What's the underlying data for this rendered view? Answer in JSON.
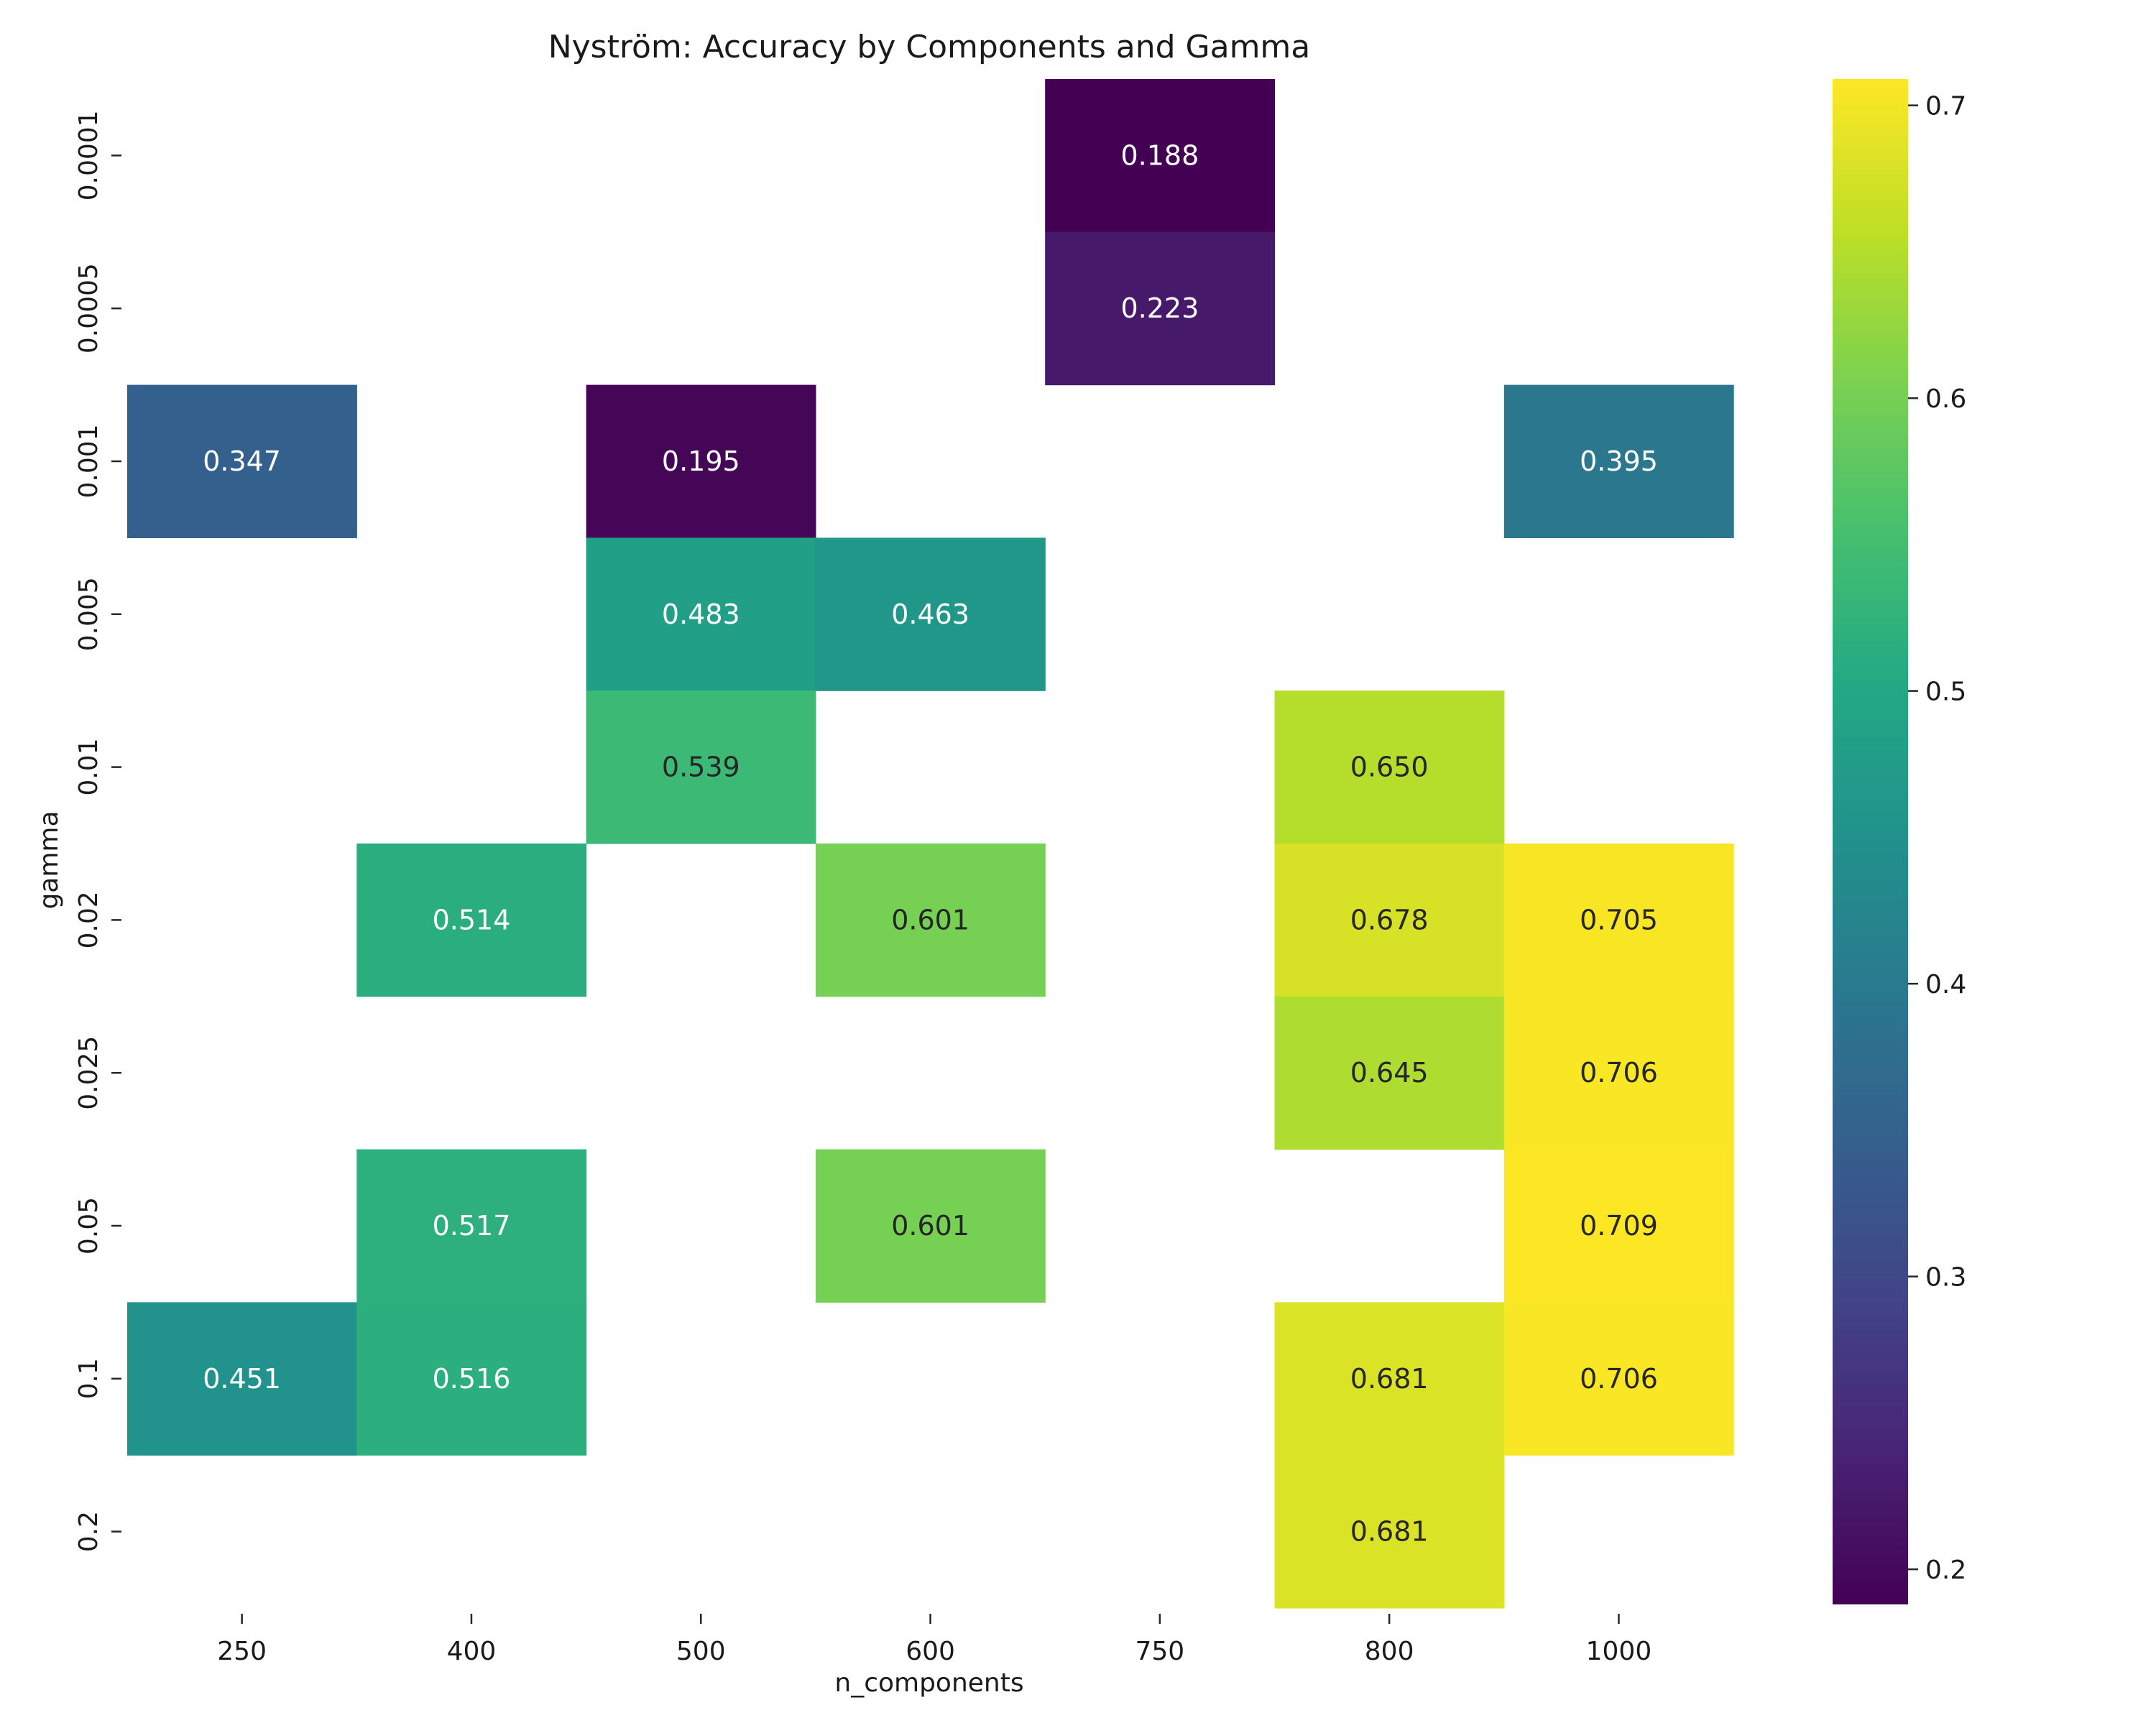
{
  "chart_data": {
    "type": "heatmap",
    "title": "Nyström: Accuracy by Components and Gamma",
    "xlabel": "n_components",
    "ylabel": "gamma",
    "x_categories": [
      "250",
      "400",
      "500",
      "600",
      "750",
      "800",
      "1000"
    ],
    "y_categories": [
      "0.0001",
      "0.0005",
      "0.001",
      "0.005",
      "0.01",
      "0.02",
      "0.025",
      "0.05",
      "0.1",
      "0.2"
    ],
    "values": [
      [
        null,
        null,
        null,
        null,
        0.188,
        null,
        null
      ],
      [
        null,
        null,
        null,
        null,
        0.223,
        null,
        null
      ],
      [
        0.347,
        null,
        0.195,
        null,
        null,
        null,
        0.395
      ],
      [
        null,
        null,
        0.483,
        0.463,
        null,
        null,
        null
      ],
      [
        null,
        null,
        0.539,
        null,
        null,
        0.65,
        null
      ],
      [
        null,
        0.514,
        null,
        0.601,
        null,
        0.678,
        0.705
      ],
      [
        null,
        null,
        null,
        null,
        null,
        0.645,
        0.706
      ],
      [
        null,
        0.517,
        null,
        0.601,
        null,
        null,
        0.709
      ],
      [
        0.451,
        0.516,
        null,
        null,
        null,
        0.681,
        0.706
      ],
      [
        null,
        null,
        null,
        null,
        null,
        0.681,
        null
      ]
    ],
    "value_format": "0.000",
    "colormap": "viridis",
    "vmin": 0.188,
    "vmax": 0.709,
    "colorbar_ticks": [
      "0.2",
      "0.3",
      "0.4",
      "0.5",
      "0.6",
      "0.7"
    ],
    "colorbar_tick_values": [
      0.2,
      0.3,
      0.4,
      0.5,
      0.6,
      0.7
    ],
    "grid": false,
    "legend": "colorbar-right"
  }
}
